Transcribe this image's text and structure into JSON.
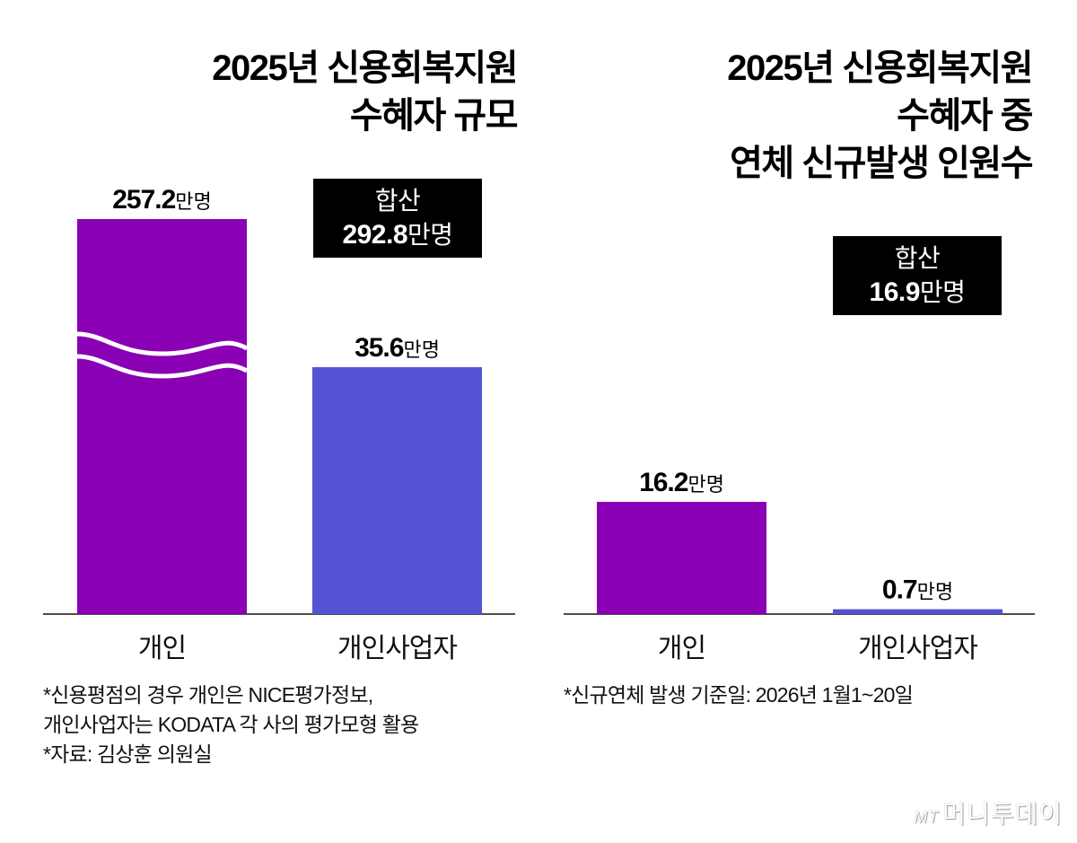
{
  "chart_data": [
    {
      "type": "bar",
      "title": "2025년 신용회복지원 수혜자 규모",
      "title_lines": [
        "2025년 신용회복지원",
        "수혜자 규모"
      ],
      "categories": [
        "개인",
        "개인사업자"
      ],
      "values": [
        257.2,
        35.6
      ],
      "unit": "만명",
      "data_labels": [
        {
          "num": "257.2",
          "unit": "만명"
        },
        {
          "num": "35.6",
          "unit": "만명"
        }
      ],
      "axis_break_on": "개인",
      "colors": [
        "#8a00b4",
        "#5353d3"
      ],
      "total": {
        "label": "합산",
        "num": "292.8",
        "unit": "만명",
        "value": 292.8
      },
      "xlabel": "",
      "ylabel": "",
      "grid": false,
      "notes": [
        "*신용평점의 경우 개인은 NICE평가정보,",
        "개인사업자는 KODATA 각 사의 평가모형 활용",
        "*자료: 김상훈 의원실"
      ]
    },
    {
      "type": "bar",
      "title": "2025년 신용회복지원 수혜자 중 연체 신규발생 인원수",
      "title_lines": [
        "2025년 신용회복지원",
        "수혜자 중",
        "연체 신규발생 인원수"
      ],
      "categories": [
        "개인",
        "개인사업자"
      ],
      "values": [
        16.2,
        0.7
      ],
      "unit": "만명",
      "data_labels": [
        {
          "num": "16.2",
          "unit": "만명"
        },
        {
          "num": "0.7",
          "unit": "만명"
        }
      ],
      "colors": [
        "#8a00b4",
        "#5353d3"
      ],
      "total": {
        "label": "합산",
        "num": "16.9",
        "unit": "만명",
        "value": 16.9
      },
      "xlabel": "",
      "ylabel": "",
      "grid": false,
      "notes": [
        "*신규연체 발생 기준일: 2026년 1월1~20일"
      ]
    }
  ],
  "logo": {
    "mark": "MT",
    "name": "머니투데이"
  }
}
